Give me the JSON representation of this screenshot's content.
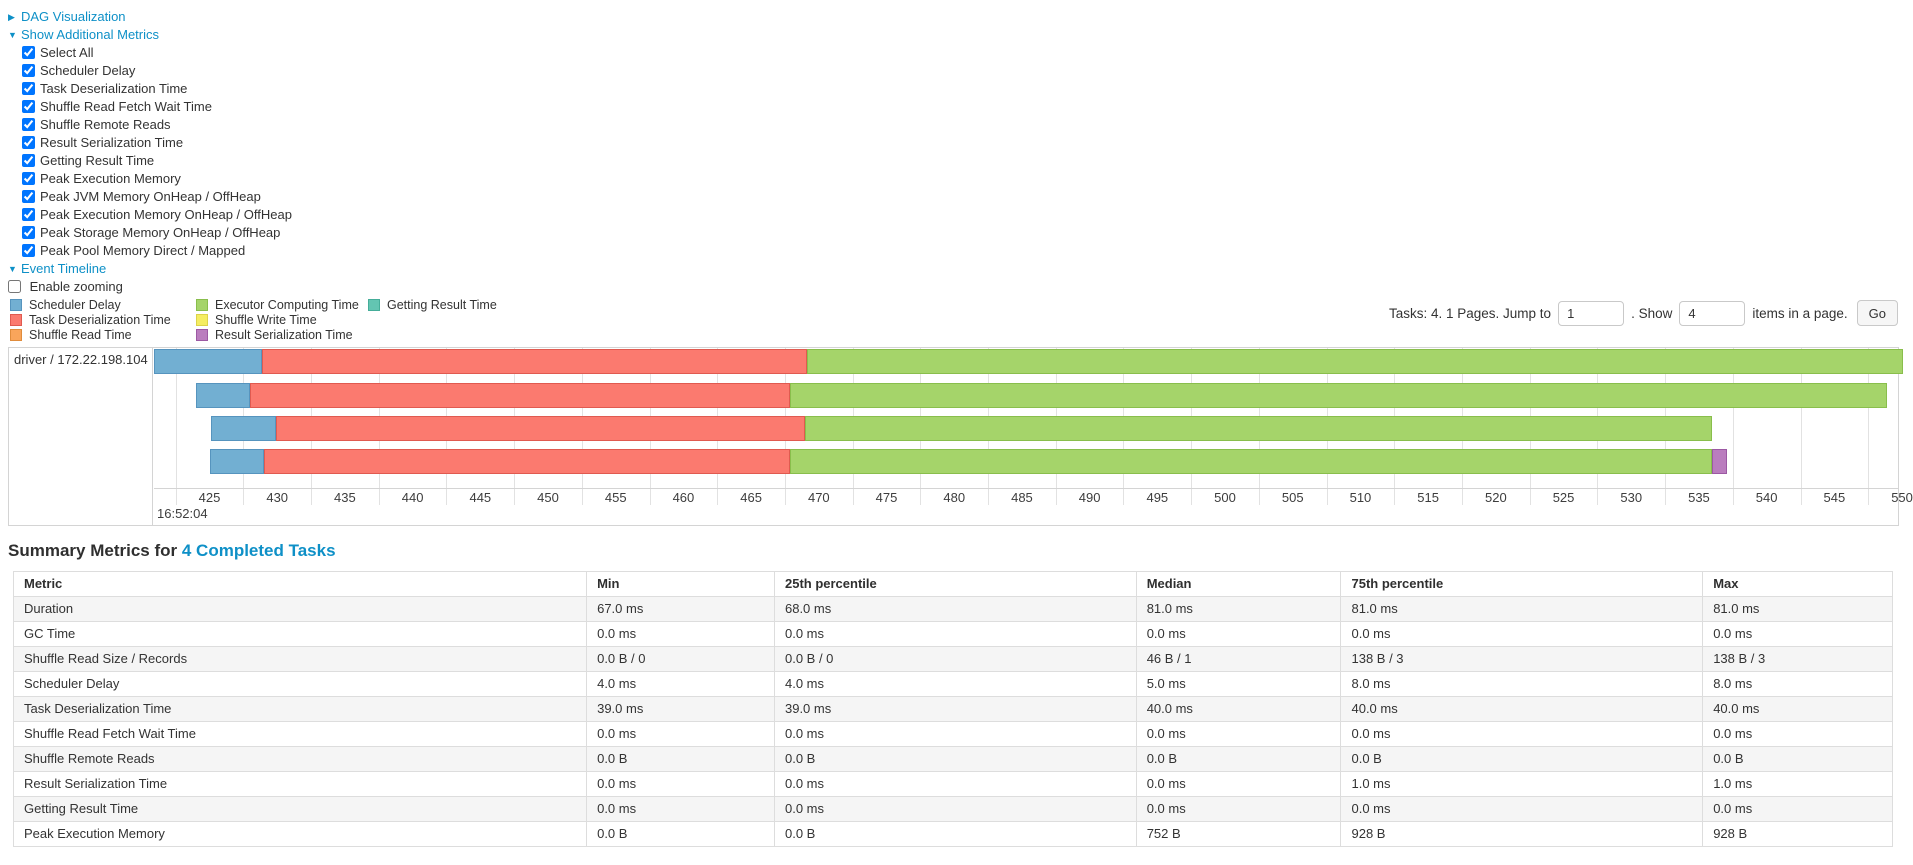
{
  "controls": {
    "dag": {
      "label": "DAG Visualization",
      "expanded": false
    },
    "additional_metrics": {
      "label": "Show Additional Metrics",
      "expanded": true
    },
    "metric_checkboxes": [
      {
        "label": "Select All",
        "checked": true
      },
      {
        "label": "Scheduler Delay",
        "checked": true
      },
      {
        "label": "Task Deserialization Time",
        "checked": true
      },
      {
        "label": "Shuffle Read Fetch Wait Time",
        "checked": true
      },
      {
        "label": "Shuffle Remote Reads",
        "checked": true
      },
      {
        "label": "Result Serialization Time",
        "checked": true
      },
      {
        "label": "Getting Result Time",
        "checked": true
      },
      {
        "label": "Peak Execution Memory",
        "checked": true
      },
      {
        "label": "Peak JVM Memory OnHeap / OffHeap",
        "checked": true
      },
      {
        "label": "Peak Execution Memory OnHeap / OffHeap",
        "checked": true
      },
      {
        "label": "Peak Storage Memory OnHeap / OffHeap",
        "checked": true
      },
      {
        "label": "Peak Pool Memory Direct / Mapped",
        "checked": true
      }
    ],
    "event_timeline": {
      "label": "Event Timeline",
      "expanded": true
    },
    "enable_zooming": {
      "label": "Enable zooming",
      "checked": false
    }
  },
  "pagination": {
    "prefix": "Tasks: 4. 1 Pages. Jump to",
    "jump_value": "1",
    "mid": ". Show",
    "show_value": "4",
    "suffix": "items in a page.",
    "go_label": "Go"
  },
  "legend": {
    "columns": [
      [
        {
          "name": "Scheduler Delay",
          "key": "scheduler_delay"
        },
        {
          "name": "Task Deserialization Time",
          "key": "task_deserialization"
        },
        {
          "name": "Shuffle Read Time",
          "key": "shuffle_read"
        }
      ],
      [
        {
          "name": "Executor Computing Time",
          "key": "executor_computing"
        },
        {
          "name": "Shuffle Write Time",
          "key": "shuffle_write"
        },
        {
          "name": "Result Serialization Time",
          "key": "result_serialization"
        }
      ],
      [
        {
          "name": "Getting Result Time",
          "key": "getting_result"
        }
      ]
    ]
  },
  "colors": {
    "scheduler_delay": {
      "fill": "#72AFD2",
      "border": "#5694BE"
    },
    "task_deserialization": {
      "fill": "#FB7A6F",
      "border": "#E05A50"
    },
    "shuffle_read": {
      "fill": "#F9A55B",
      "border": "#E08C3C"
    },
    "executor_computing": {
      "fill": "#A5D46A",
      "border": "#89BE4C"
    },
    "shuffle_write": {
      "fill": "#F5ED62",
      "border": "#DCD34A"
    },
    "result_serialization": {
      "fill": "#BA7DBE",
      "border": "#9C59A3"
    },
    "getting_result": {
      "fill": "#63C5B2",
      "border": "#45AD99"
    },
    "link": "#0e90c7"
  },
  "chart_data": {
    "type": "timeline",
    "executor_label": "driver / 172.22.198.104",
    "x_axis": {
      "major_label": "16:52:04",
      "tick_start": 425,
      "tick_end": 550,
      "tick_step": 5,
      "domain_min": 420.9,
      "domain_max": 549.7,
      "gridline_offset": -2.5
    },
    "tasks": [
      {
        "segments": [
          {
            "key": "scheduler_delay",
            "start": 420.9,
            "end": 428.9
          },
          {
            "key": "task_deserialization",
            "start": 428.9,
            "end": 469.1
          },
          {
            "key": "executor_computing",
            "start": 469.1,
            "end": 550.1
          }
        ]
      },
      {
        "segments": [
          {
            "key": "scheduler_delay",
            "start": 424.0,
            "end": 428.0
          },
          {
            "key": "task_deserialization",
            "start": 428.0,
            "end": 467.9
          },
          {
            "key": "executor_computing",
            "start": 467.9,
            "end": 548.9
          }
        ]
      },
      {
        "segments": [
          {
            "key": "scheduler_delay",
            "start": 425.1,
            "end": 429.9
          },
          {
            "key": "task_deserialization",
            "start": 429.9,
            "end": 469.0
          },
          {
            "key": "executor_computing",
            "start": 469.0,
            "end": 536.0
          }
        ]
      },
      {
        "segments": [
          {
            "key": "scheduler_delay",
            "start": 425.0,
            "end": 429.0
          },
          {
            "key": "task_deserialization",
            "start": 429.0,
            "end": 467.9
          },
          {
            "key": "executor_computing",
            "start": 467.9,
            "end": 536.0
          },
          {
            "key": "result_serialization",
            "start": 536.0,
            "end": 537.1
          }
        ]
      }
    ]
  },
  "summary": {
    "heading_prefix": "Summary Metrics for",
    "heading_link": "4 Completed Tasks",
    "table": {
      "columns": [
        "Metric",
        "Min",
        "25th percentile",
        "Median",
        "75th percentile",
        "Max"
      ],
      "col_widths_pct": [
        30.5,
        10.0,
        19.25,
        10.9,
        19.25,
        10.1
      ],
      "rows": [
        [
          "Duration",
          "67.0 ms",
          "68.0 ms",
          "81.0 ms",
          "81.0 ms",
          "81.0 ms"
        ],
        [
          "GC Time",
          "0.0 ms",
          "0.0 ms",
          "0.0 ms",
          "0.0 ms",
          "0.0 ms"
        ],
        [
          "Shuffle Read Size / Records",
          "0.0 B / 0",
          "0.0 B / 0",
          "46 B / 1",
          "138 B / 3",
          "138 B / 3"
        ],
        [
          "Scheduler Delay",
          "4.0 ms",
          "4.0 ms",
          "5.0 ms",
          "8.0 ms",
          "8.0 ms"
        ],
        [
          "Task Deserialization Time",
          "39.0 ms",
          "39.0 ms",
          "40.0 ms",
          "40.0 ms",
          "40.0 ms"
        ],
        [
          "Shuffle Read Fetch Wait Time",
          "0.0 ms",
          "0.0 ms",
          "0.0 ms",
          "0.0 ms",
          "0.0 ms"
        ],
        [
          "Shuffle Remote Reads",
          "0.0 B",
          "0.0 B",
          "0.0 B",
          "0.0 B",
          "0.0 B"
        ],
        [
          "Result Serialization Time",
          "0.0 ms",
          "0.0 ms",
          "0.0 ms",
          "1.0 ms",
          "1.0 ms"
        ],
        [
          "Getting Result Time",
          "0.0 ms",
          "0.0 ms",
          "0.0 ms",
          "0.0 ms",
          "0.0 ms"
        ],
        [
          "Peak Execution Memory",
          "0.0 B",
          "0.0 B",
          "752 B",
          "928 B",
          "928 B"
        ]
      ]
    }
  }
}
